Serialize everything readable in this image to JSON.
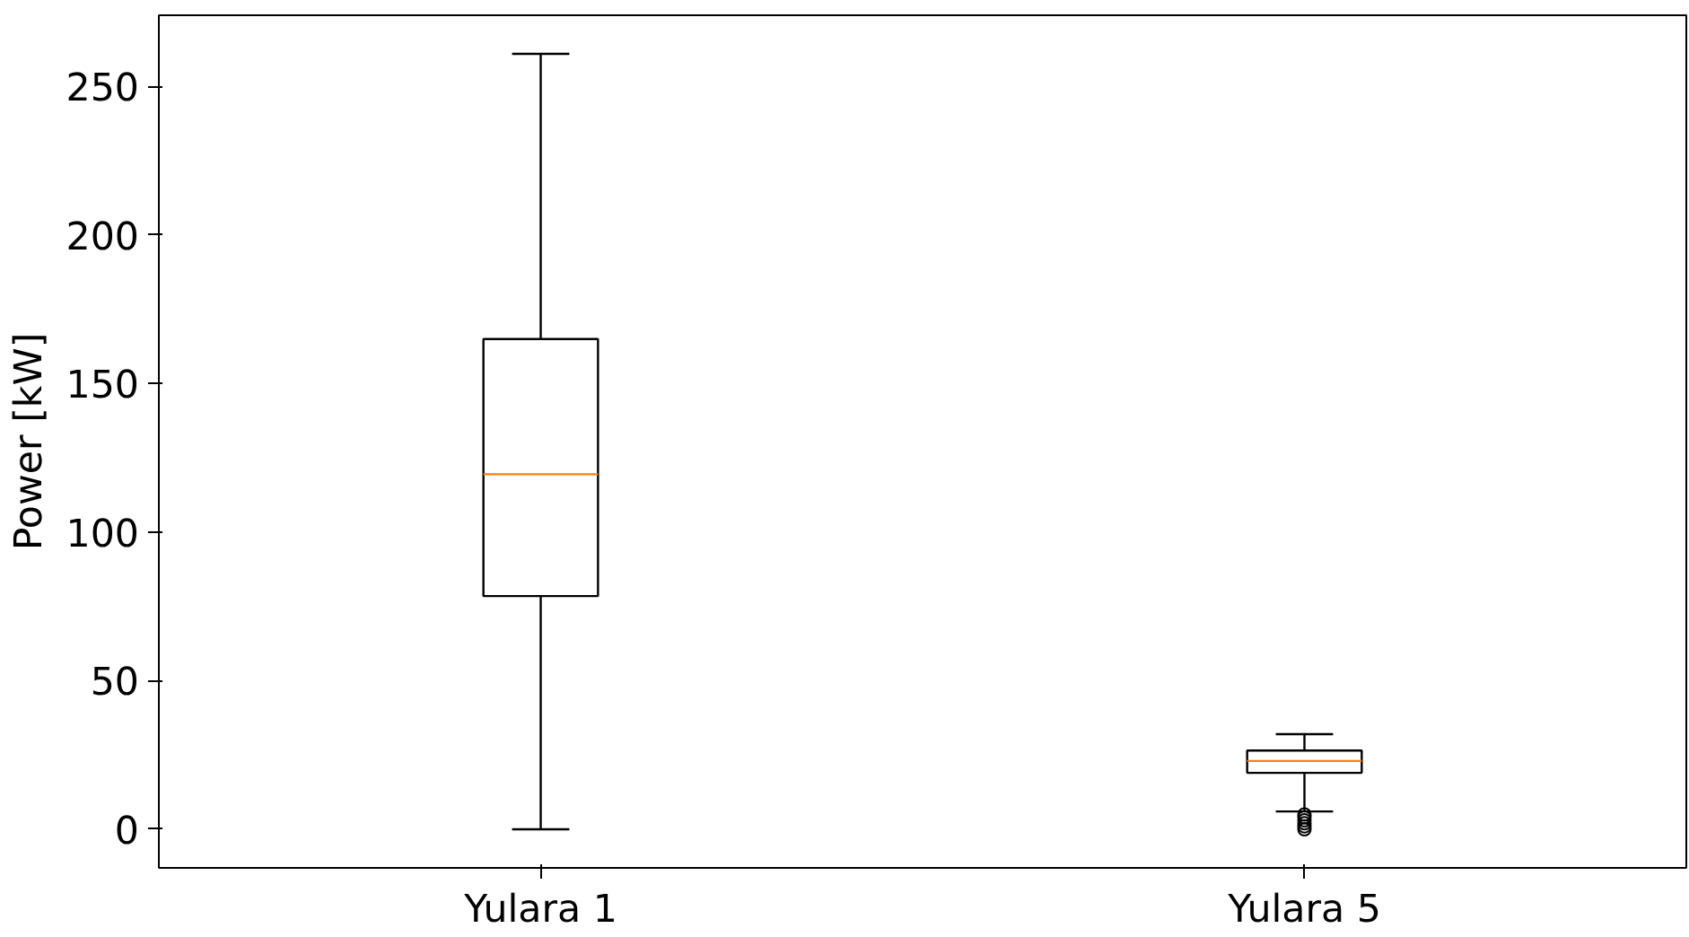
{
  "chart_data": {
    "type": "box",
    "ylabel": "Power [kW]",
    "categories": [
      "Yulara 1",
      "Yulara 5"
    ],
    "boxes": [
      {
        "low": 0,
        "q1": 78.5,
        "median": 119.5,
        "q3": 165,
        "high": 261
      },
      {
        "low": 6,
        "q1": 19,
        "median": 23,
        "q3": 26.5,
        "high": 32,
        "outliers": [
          5,
          4,
          3,
          2,
          1,
          0
        ]
      }
    ],
    "ylim": [
      -13,
      274
    ],
    "yticks": [
      0,
      50,
      100,
      150,
      200,
      250
    ],
    "grid": false
  }
}
